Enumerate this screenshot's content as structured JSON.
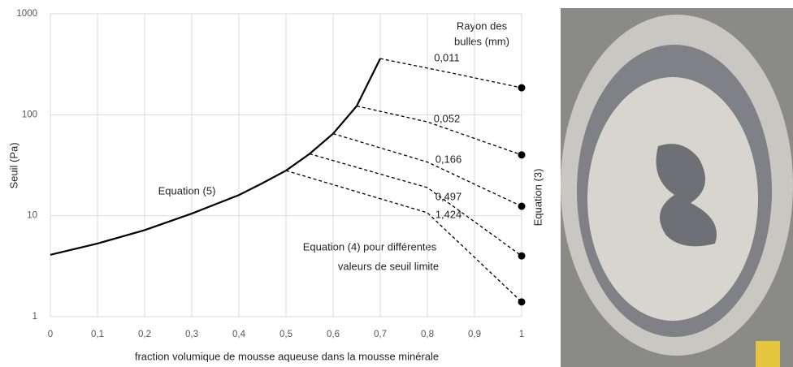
{
  "chart_data": {
    "type": "line",
    "x_label": "fraction volumique de mousse aqueuse dans la mousse minérale",
    "y_label": "Seuil (Pa)",
    "log_y": true,
    "grid": true,
    "xlim": [
      0,
      1
    ],
    "xticks": [
      0,
      {
        "value": 0.1,
        "label": "0,1"
      },
      {
        "value": 0.2,
        "label": "0,2"
      },
      {
        "value": 0.3,
        "label": "0,3"
      },
      {
        "value": 0.4,
        "label": "0,4"
      },
      {
        "value": 0.5,
        "label": "0,5"
      },
      {
        "value": 0.6,
        "label": "0,6"
      },
      {
        "value": 0.7,
        "label": "0,7"
      },
      {
        "value": 0.8,
        "label": "0,8"
      },
      {
        "value": 0.9,
        "label": "0,9"
      },
      1
    ],
    "ylim": [
      1,
      1000
    ],
    "yticks": [
      1,
      10,
      100,
      1000
    ],
    "legend_title": [
      "Rayon des",
      "bulles (mm)"
    ],
    "annotations": [
      "Equation (5)",
      "Equation (4) pour différentes",
      "valeurs de seuil limite",
      "Equation (3)"
    ],
    "series": [
      {
        "name": "Equation (5)",
        "color": "#000000",
        "style": "solid",
        "marker": false,
        "x": [
          0,
          0.1,
          0.2,
          0.3,
          0.4,
          0.45,
          0.5,
          0.55,
          0.6,
          0.65,
          0.7
        ],
        "values": [
          4.1,
          5.3,
          7.2,
          10.5,
          16,
          21,
          28,
          41,
          65,
          122,
          360
        ]
      },
      {
        "name": "0,011",
        "color": "#000000",
        "style": "dashed",
        "marker": true,
        "x": [
          0.7,
          0.85,
          1
        ],
        "values": [
          360,
          260,
          185
        ]
      },
      {
        "name": "0,052",
        "color": "#000000",
        "style": "dashed",
        "marker": true,
        "x": [
          0.65,
          0.8,
          1
        ],
        "values": [
          122,
          85,
          40
        ]
      },
      {
        "name": "0,166",
        "color": "#000000",
        "style": "dashed",
        "marker": true,
        "x": [
          0.6,
          0.8,
          1
        ],
        "values": [
          65,
          34,
          12.4
        ]
      },
      {
        "name": "0,497",
        "color": "#000000",
        "style": "dashed",
        "marker": true,
        "x": [
          0.55,
          0.8,
          1
        ],
        "values": [
          41,
          19,
          4
        ]
      },
      {
        "name": "1,424",
        "color": "#000000",
        "style": "dashed",
        "marker": true,
        "x": [
          0.5,
          0.8,
          1
        ],
        "values": [
          28,
          10.7,
          1.4
        ]
      }
    ]
  }
}
